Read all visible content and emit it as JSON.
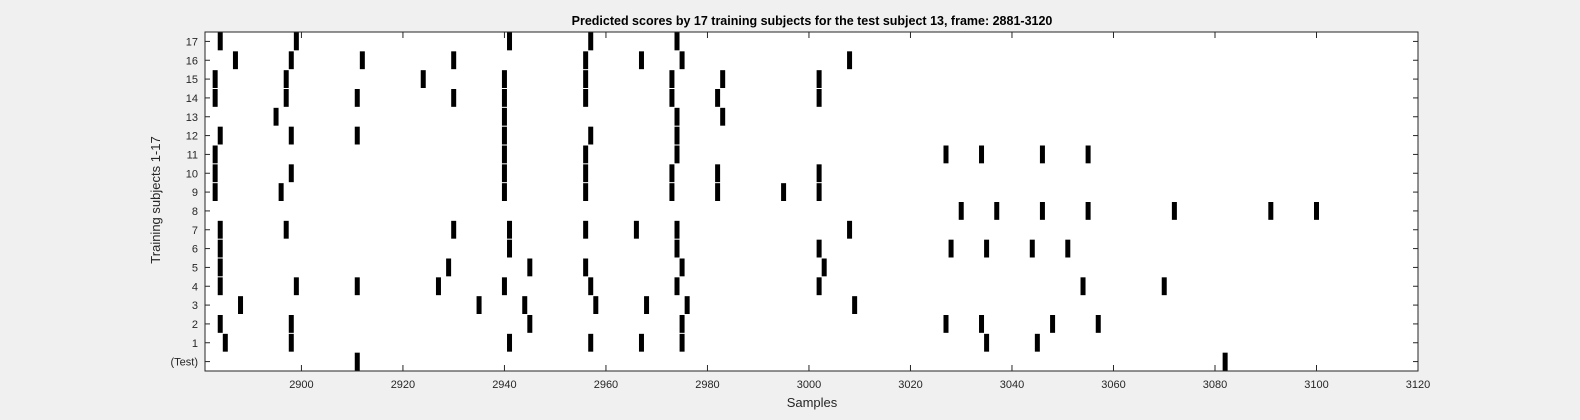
{
  "chart_data": {
    "type": "scatter",
    "title": "Predicted scores by 17 training subjects for the test subject 13, frame: 2881-3120",
    "xlabel": "Samples",
    "ylabel": "Training subjects 1-17",
    "xlim": [
      2881,
      3120
    ],
    "x_ticks": [
      2900,
      2920,
      2940,
      2960,
      2980,
      3000,
      3020,
      3040,
      3060,
      3080,
      3100,
      3120
    ],
    "y_tick_labels": [
      "(Test)",
      "1",
      "2",
      "3",
      "4",
      "5",
      "6",
      "7",
      "8",
      "9",
      "10",
      "11",
      "12",
      "13",
      "14",
      "15",
      "16",
      "17"
    ],
    "grid": false,
    "marker": "vertical-bar",
    "marker_color": "#000000",
    "background_color": "#f0f0f0",
    "plot_area_color": "#ffffff",
    "rows": [
      {
        "label": "(Test)",
        "x": [
          2911,
          3082
        ]
      },
      {
        "label": "1",
        "x": [
          2885,
          2898,
          2941,
          2957,
          2967,
          2975,
          3035,
          3045
        ]
      },
      {
        "label": "2",
        "x": [
          2884,
          2898,
          2945,
          2975,
          3027,
          3034,
          3048,
          3057
        ]
      },
      {
        "label": "3",
        "x": [
          2888,
          2935,
          2944,
          2958,
          2968,
          2976,
          3009
        ]
      },
      {
        "label": "4",
        "x": [
          2884,
          2899,
          2911,
          2927,
          2940,
          2957,
          2974,
          3002,
          3054,
          3070
        ]
      },
      {
        "label": "5",
        "x": [
          2884,
          2929,
          2945,
          2956,
          2975,
          3003
        ]
      },
      {
        "label": "6",
        "x": [
          2884,
          2941,
          2974,
          3002,
          3028,
          3035,
          3044,
          3051
        ]
      },
      {
        "label": "7",
        "x": [
          2884,
          2897,
          2930,
          2941,
          2956,
          2966,
          2974,
          3008
        ]
      },
      {
        "label": "8",
        "x": [
          3030,
          3037,
          3046,
          3055,
          3072,
          3091,
          3100
        ]
      },
      {
        "label": "9",
        "x": [
          2883,
          2896,
          2940,
          2956,
          2973,
          2982,
          2995,
          3002
        ]
      },
      {
        "label": "10",
        "x": [
          2883,
          2898,
          2940,
          2956,
          2973,
          2982,
          3002
        ]
      },
      {
        "label": "11",
        "x": [
          2883,
          2940,
          2956,
          2974,
          3027,
          3034,
          3046,
          3055
        ]
      },
      {
        "label": "12",
        "x": [
          2884,
          2898,
          2911,
          2940,
          2957,
          2974
        ]
      },
      {
        "label": "13",
        "x": [
          2895,
          2940,
          2974,
          2983
        ]
      },
      {
        "label": "14",
        "x": [
          2883,
          2897,
          2911,
          2930,
          2940,
          2956,
          2973,
          2982,
          3002
        ]
      },
      {
        "label": "15",
        "x": [
          2883,
          2897,
          2924,
          2940,
          2956,
          2973,
          2983,
          3002
        ]
      },
      {
        "label": "16",
        "x": [
          2887,
          2898,
          2912,
          2930,
          2956,
          2967,
          2975,
          3008
        ]
      },
      {
        "label": "17",
        "x": [
          2884,
          2899,
          2941,
          2957,
          2974
        ]
      }
    ]
  }
}
